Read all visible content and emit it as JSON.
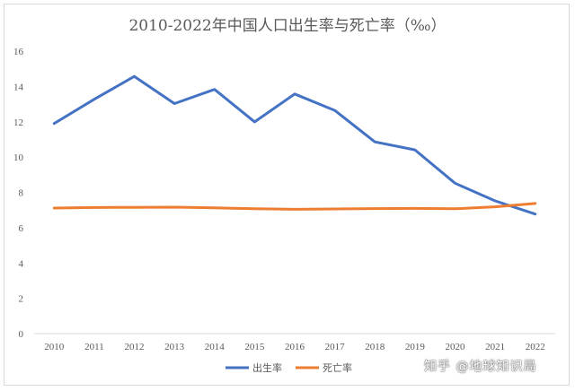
{
  "chart_data": {
    "type": "line",
    "title": "2010-2022年中国人口出生率与死亡率（‰）",
    "xlabel": "",
    "ylabel": "",
    "categories": [
      "2010",
      "2011",
      "2012",
      "2013",
      "2014",
      "2015",
      "2016",
      "2017",
      "2018",
      "2019",
      "2020",
      "2021",
      "2022"
    ],
    "ylim": [
      0,
      16
    ],
    "yticks": [
      0,
      2,
      4,
      6,
      8,
      10,
      12,
      14,
      16
    ],
    "grid": false,
    "legend_position": "bottom",
    "series": [
      {
        "name": "出生率",
        "color": "#4472c4",
        "values": [
          11.9,
          13.27,
          14.57,
          13.03,
          13.83,
          11.99,
          13.57,
          12.64,
          10.86,
          10.41,
          8.52,
          7.52,
          6.77
        ]
      },
      {
        "name": "死亡率",
        "color": "#ed7d31",
        "values": [
          7.11,
          7.14,
          7.15,
          7.16,
          7.12,
          7.07,
          7.04,
          7.06,
          7.08,
          7.09,
          7.07,
          7.18,
          7.37
        ]
      }
    ]
  },
  "watermark": "知乎 @地球知识局"
}
